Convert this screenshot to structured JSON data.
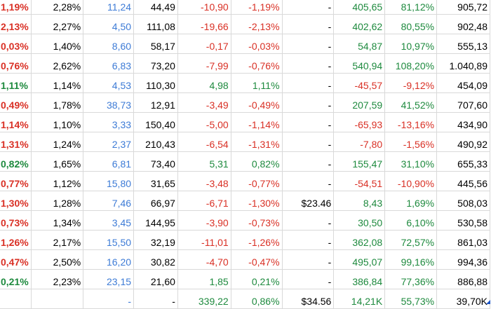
{
  "colors": {
    "positive": "#1e8a3e",
    "negative": "#d93025",
    "link_blue": "#3d7bd6",
    "default": "#000000"
  },
  "rows": [
    {
      "c0": "1,19%",
      "c1": "2,28%",
      "c2": "11,24",
      "c3": "44,49",
      "c4": "-10,90",
      "c5": "-1,19%",
      "c6": "-",
      "c7": "405,65",
      "c8": "81,12%",
      "c9": "905,72",
      "s0": "neg",
      "s4": "neg",
      "s5": "neg",
      "s7": "pos",
      "s8": "pos"
    },
    {
      "c0": "2,13%",
      "c1": "2,27%",
      "c2": "4,50",
      "c3": "111,08",
      "c4": "-19,66",
      "c5": "-2,13%",
      "c6": "-",
      "c7": "402,62",
      "c8": "80,55%",
      "c9": "902,48",
      "s0": "neg",
      "s4": "neg",
      "s5": "neg",
      "s7": "pos",
      "s8": "pos"
    },
    {
      "c0": "0,03%",
      "c1": "1,40%",
      "c2": "8,60",
      "c3": "58,17",
      "c4": "-0,17",
      "c5": "-0,03%",
      "c6": "-",
      "c7": "54,87",
      "c8": "10,97%",
      "c9": "555,13",
      "s0": "neg",
      "s4": "neg",
      "s5": "neg",
      "s7": "pos",
      "s8": "pos"
    },
    {
      "c0": "0,76%",
      "c1": "2,62%",
      "c2": "6,83",
      "c3": "73,20",
      "c4": "-7,99",
      "c5": "-0,76%",
      "c6": "-",
      "c7": "540,94",
      "c8": "108,20%",
      "c9": "1.040,89",
      "s0": "neg",
      "s4": "neg",
      "s5": "neg",
      "s7": "pos",
      "s8": "pos"
    },
    {
      "c0": "1,11%",
      "c1": "1,14%",
      "c2": "4,53",
      "c3": "110,30",
      "c4": "4,98",
      "c5": "1,11%",
      "c6": "-",
      "c7": "-45,57",
      "c8": "-9,12%",
      "c9": "454,09",
      "s0": "pos",
      "s4": "pos",
      "s5": "pos",
      "s7": "neg",
      "s8": "neg"
    },
    {
      "c0": "0,49%",
      "c1": "1,78%",
      "c2": "38,73",
      "c3": "12,91",
      "c4": "-3,49",
      "c5": "-0,49%",
      "c6": "-",
      "c7": "207,59",
      "c8": "41,52%",
      "c9": "707,60",
      "s0": "neg",
      "s4": "neg",
      "s5": "neg",
      "s7": "pos",
      "s8": "pos"
    },
    {
      "c0": "1,14%",
      "c1": "1,10%",
      "c2": "3,33",
      "c3": "150,40",
      "c4": "-5,00",
      "c5": "-1,14%",
      "c6": "-",
      "c7": "-65,93",
      "c8": "-13,16%",
      "c9": "434,90",
      "s0": "neg",
      "s4": "neg",
      "s5": "neg",
      "s7": "neg",
      "s8": "neg"
    },
    {
      "c0": "1,31%",
      "c1": "1,24%",
      "c2": "2,37",
      "c3": "210,43",
      "c4": "-6,54",
      "c5": "-1,31%",
      "c6": "-",
      "c7": "-7,80",
      "c8": "-1,56%",
      "c9": "490,92",
      "s0": "neg",
      "s4": "neg",
      "s5": "neg",
      "s7": "neg",
      "s8": "neg"
    },
    {
      "c0": "0,82%",
      "c1": "1,65%",
      "c2": "6,81",
      "c3": "73,40",
      "c4": "5,31",
      "c5": "0,82%",
      "c6": "-",
      "c7": "155,47",
      "c8": "31,10%",
      "c9": "655,33",
      "s0": "pos",
      "s4": "pos",
      "s5": "pos",
      "s7": "pos",
      "s8": "pos"
    },
    {
      "c0": "0,77%",
      "c1": "1,12%",
      "c2": "15,80",
      "c3": "31,65",
      "c4": "-3,48",
      "c5": "-0,77%",
      "c6": "-",
      "c7": "-54,51",
      "c8": "-10,90%",
      "c9": "445,56",
      "s0": "neg",
      "s4": "neg",
      "s5": "neg",
      "s7": "neg",
      "s8": "neg"
    },
    {
      "c0": "1,30%",
      "c1": "1,28%",
      "c2": "7,46",
      "c3": "66,97",
      "c4": "-6,71",
      "c5": "-1,30%",
      "c6": "$23.46",
      "c7": "8,43",
      "c8": "1,69%",
      "c9": "508,03",
      "s0": "neg",
      "s4": "neg",
      "s5": "neg",
      "s7": "pos",
      "s8": "pos"
    },
    {
      "c0": "0,73%",
      "c1": "1,34%",
      "c2": "3,45",
      "c3": "144,95",
      "c4": "-3,90",
      "c5": "-0,73%",
      "c6": "-",
      "c7": "30,50",
      "c8": "6,10%",
      "c9": "530,58",
      "s0": "neg",
      "s4": "neg",
      "s5": "neg",
      "s7": "pos",
      "s8": "pos"
    },
    {
      "c0": "1,26%",
      "c1": "2,17%",
      "c2": "15,50",
      "c3": "32,19",
      "c4": "-11,01",
      "c5": "-1,26%",
      "c6": "-",
      "c7": "362,08",
      "c8": "72,57%",
      "c9": "861,03",
      "s0": "neg",
      "s4": "neg",
      "s5": "neg",
      "s7": "pos",
      "s8": "pos"
    },
    {
      "c0": "0,47%",
      "c1": "2,50%",
      "c2": "16,20",
      "c3": "30,82",
      "c4": "-4,70",
      "c5": "-0,47%",
      "c6": "-",
      "c7": "495,07",
      "c8": "99,16%",
      "c9": "994,36",
      "s0": "neg",
      "s4": "neg",
      "s5": "neg",
      "s7": "pos",
      "s8": "pos"
    },
    {
      "c0": "0,21%",
      "c1": "2,23%",
      "c2": "23,15",
      "c3": "21,60",
      "c4": "1,85",
      "c5": "0,21%",
      "c6": "-",
      "c7": "386,84",
      "c8": "77,36%",
      "c9": "886,88",
      "s0": "pos",
      "s4": "pos",
      "s5": "pos",
      "s7": "pos",
      "s8": "pos"
    },
    {
      "c0": "",
      "c1": "",
      "c2": "-",
      "c3": "-",
      "c4": "339,22",
      "c5": "0,86%",
      "c6": "$34.56",
      "c7": "14,21K",
      "c8": "55,73%",
      "c9": "39,70K",
      "s0": "blk",
      "s4": "pos",
      "s5": "pos",
      "s7": "pos",
      "s8": "pos"
    }
  ]
}
